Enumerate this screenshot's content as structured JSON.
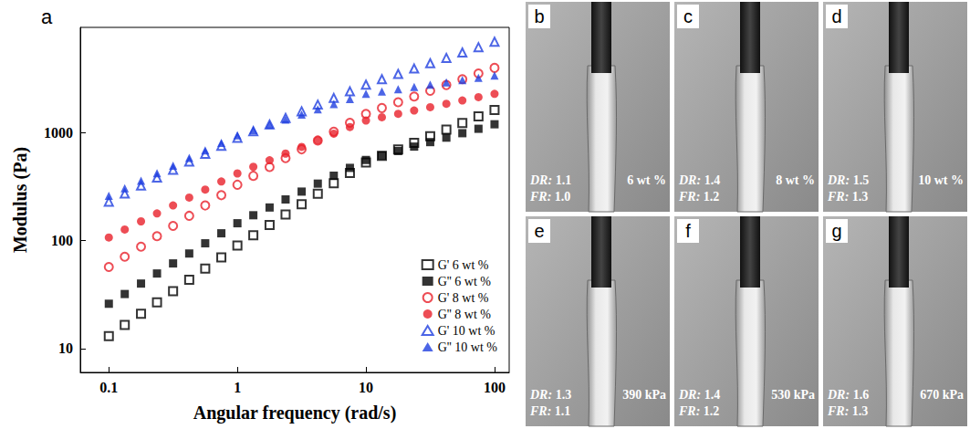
{
  "chart_data": {
    "type": "scatter",
    "panel_letter": "a",
    "x_label": "Angular frequency (rad/s)",
    "y_label": "Modulus (Pa)",
    "log": true,
    "grid": false,
    "legend": "lower right",
    "xlim": [
      0.06,
      130
    ],
    "xticks": [
      0.1,
      1,
      10,
      100
    ],
    "ylim": [
      6,
      9500
    ],
    "yticks": [
      10,
      100,
      1000
    ],
    "x": [
      0.1,
      0.133,
      0.178,
      0.237,
      0.316,
      0.422,
      0.562,
      0.75,
      1,
      1.33,
      1.78,
      2.37,
      3.16,
      4.22,
      5.62,
      7.5,
      10,
      13.3,
      17.8,
      23.7,
      31.6,
      42.2,
      56.2,
      75,
      100
    ],
    "series": [
      {
        "name": "G' 6 wt %",
        "color": "#000000",
        "marker": "square-open",
        "values": [
          13,
          16.5,
          21,
          26.8,
          34,
          43.4,
          55,
          70,
          90,
          112,
          140,
          175,
          218,
          272,
          340,
          424,
          530,
          610,
          702,
          808,
          930,
          1070,
          1232,
          1418,
          1630
        ]
      },
      {
        "name": "G'' 6 wt %",
        "color": "#000000",
        "marker": "square",
        "values": [
          26,
          32,
          40,
          49.6,
          61.5,
          76,
          94.5,
          117,
          145,
          172,
          203,
          241,
          285,
          338,
          400,
          473,
          560,
          616,
          678,
          745,
          820,
          902,
          992,
          1090,
          1200
        ]
      },
      {
        "name": "G' 8 wt %",
        "color": "#e8202a",
        "marker": "circle-open",
        "values": [
          57,
          71,
          88,
          110,
          137,
          170,
          212,
          264,
          330,
          399,
          482,
          582,
          703,
          849,
          1025,
          1240,
          1500,
          1697,
          1919,
          2170,
          2455,
          2776,
          3140,
          3550,
          4000
        ]
      },
      {
        "name": "G'' 8 wt %",
        "color": "#e8202a",
        "marker": "circle",
        "values": [
          107,
          127,
          151,
          179,
          212,
          251,
          298,
          354,
          420,
          484,
          557,
          642,
          740,
          852,
          982,
          1131,
          1300,
          1396,
          1500,
          1610,
          1730,
          1858,
          1995,
          2142,
          2300
        ]
      },
      {
        "name": "G' 10 wt %",
        "color": "#1f3fe0",
        "marker": "triangle-open",
        "values": [
          230,
          273,
          324,
          384,
          455,
          540,
          640,
          759,
          900,
          1037,
          1195,
          1376,
          1585,
          1826,
          2104,
          2424,
          2800,
          3140,
          3520,
          3945,
          4420,
          4957,
          5556,
          6230,
          7000
        ]
      },
      {
        "name": "G'' 10 wt %",
        "color": "#1f3fe0",
        "marker": "triangle",
        "values": [
          260,
          306,
          360,
          423,
          497,
          585,
          688,
          809,
          950,
          1061,
          1185,
          1324,
          1479,
          1652,
          1845,
          2060,
          2300,
          2415,
          2536,
          2663,
          2796,
          2936,
          3083,
          3237,
          3400
        ]
      }
    ]
  },
  "photos": {
    "dr_label": "DR:",
    "fr_label": "FR:",
    "panels": [
      {
        "letter": "b",
        "dr": "1.1",
        "fr": "1.0",
        "label": "6 wt %"
      },
      {
        "letter": "c",
        "dr": "1.4",
        "fr": "1.2",
        "label": "8 wt %"
      },
      {
        "letter": "d",
        "dr": "1.5",
        "fr": "1.3",
        "label": "10 wt %"
      },
      {
        "letter": "e",
        "dr": "1.3",
        "fr": "1.1",
        "label": "390 kPa"
      },
      {
        "letter": "f",
        "dr": "1.4",
        "fr": "1.2",
        "label": "530 kPa"
      },
      {
        "letter": "g",
        "dr": "1.6",
        "fr": "1.3",
        "label": "670 kPa"
      }
    ]
  }
}
